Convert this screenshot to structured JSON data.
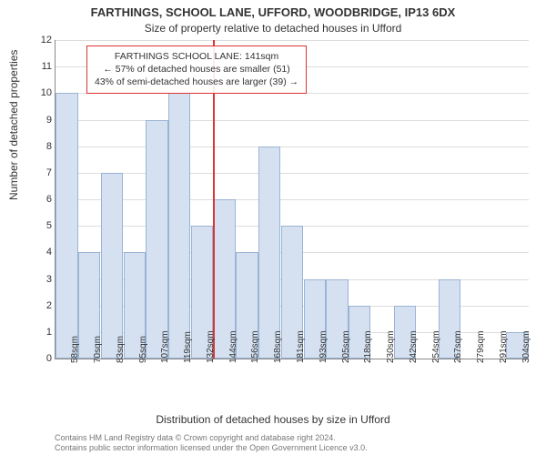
{
  "titles": {
    "main": "FARTHINGS, SCHOOL LANE, UFFORD, WOODBRIDGE, IP13 6DX",
    "sub": "Size of property relative to detached houses in Ufford"
  },
  "axes": {
    "ylabel": "Number of detached properties",
    "xlabel": "Distribution of detached houses by size in Ufford",
    "ymax": 12,
    "yticks": [
      0,
      1,
      2,
      3,
      4,
      5,
      6,
      7,
      8,
      9,
      10,
      11,
      12
    ],
    "xticks": [
      "58sqm",
      "70sqm",
      "83sqm",
      "95sqm",
      "107sqm",
      "119sqm",
      "132sqm",
      "144sqm",
      "156sqm",
      "168sqm",
      "181sqm",
      "193sqm",
      "205sqm",
      "218sqm",
      "230sqm",
      "242sqm",
      "254sqm",
      "267sqm",
      "279sqm",
      "291sqm",
      "304sqm"
    ]
  },
  "chart": {
    "type": "histogram",
    "bar_color": "#d5e1f0",
    "bar_border": "#9ab4d5",
    "grid_color": "#dddddd",
    "background": "#ffffff",
    "values": [
      10,
      4,
      7,
      4,
      9,
      10,
      5,
      6,
      4,
      8,
      5,
      3,
      3,
      2,
      0,
      2,
      0,
      3,
      0,
      0,
      1
    ],
    "marker": {
      "index_position": 7.0,
      "color": "#d33"
    }
  },
  "annotation": {
    "line1": "FARTHINGS SCHOOL LANE: 141sqm",
    "line2": "← 57% of detached houses are smaller (51)",
    "line3": "43% of semi-detached houses are larger (39) →"
  },
  "footer": {
    "line1": "Contains HM Land Registry data © Crown copyright and database right 2024.",
    "line2": "Contains public sector information licensed under the Open Government Licence v3.0."
  }
}
